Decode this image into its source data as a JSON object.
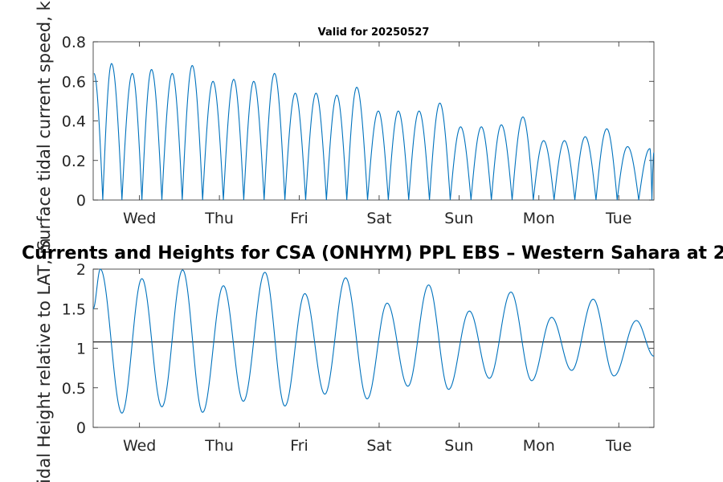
{
  "figure": {
    "subtitle": "Valid for 20250527",
    "title": "Currents and Heights for CSA (ONHYM) PPL EBS  – Western Sahara at 2"
  },
  "colors": {
    "series": "#0072BD",
    "mean_line": "#262626",
    "axes": "#262626"
  },
  "chart_data": [
    {
      "type": "line",
      "title": "Valid for 20250527",
      "ylabel": "Surface tidal current speed, kn",
      "xlabel": "",
      "x_unit": "days",
      "xlim": [
        -0.58,
        6.44
      ],
      "ylim": [
        0,
        0.8
      ],
      "yticks": [
        0,
        0.2,
        0.4,
        0.6,
        0.8
      ],
      "ytick_labels": [
        "0",
        "0.2",
        "0.4",
        "0.6",
        "0.8"
      ],
      "xticks": [
        0,
        1,
        2,
        3,
        4,
        5,
        6
      ],
      "xtick_labels": [
        "Wed",
        "Thu",
        "Fri",
        "Sat",
        "Sun",
        "Mon",
        "Tue"
      ],
      "grid": false,
      "series": [
        {
          "peaks": [
            [
              -0.57,
              0.64
            ],
            [
              -0.35,
              0.69
            ],
            [
              -0.09,
              0.64
            ],
            [
              0.15,
              0.66
            ],
            [
              0.41,
              0.64
            ],
            [
              0.66,
              0.68
            ],
            [
              0.92,
              0.6
            ],
            [
              1.18,
              0.61
            ],
            [
              1.43,
              0.6
            ],
            [
              1.69,
              0.64
            ],
            [
              1.95,
              0.54
            ],
            [
              2.21,
              0.54
            ],
            [
              2.47,
              0.53
            ],
            [
              2.72,
              0.57
            ],
            [
              2.99,
              0.45
            ],
            [
              3.24,
              0.45
            ],
            [
              3.5,
              0.45
            ],
            [
              3.76,
              0.49
            ],
            [
              4.02,
              0.37
            ],
            [
              4.28,
              0.37
            ],
            [
              4.53,
              0.38
            ],
            [
              4.8,
              0.42
            ],
            [
              5.06,
              0.3
            ],
            [
              5.32,
              0.3
            ],
            [
              5.58,
              0.32
            ],
            [
              5.85,
              0.36
            ],
            [
              6.11,
              0.27
            ],
            [
              6.39,
              0.26
            ],
            [
              6.44,
              0.24
            ]
          ]
        }
      ]
    },
    {
      "type": "line",
      "title": "Currents and Heights for CSA (ONHYM) PPL EBS  – Western Sahara at 2",
      "ylabel": "Tidal Height relative to LAT, m",
      "xlabel": "",
      "x_unit": "days",
      "xlim": [
        -0.58,
        6.44
      ],
      "ylim": [
        0,
        2
      ],
      "yticks": [
        0,
        0.5,
        1,
        1.5,
        2
      ],
      "ytick_labels": [
        "0",
        "0.5",
        "1",
        "1.5",
        "2"
      ],
      "xticks": [
        0,
        1,
        2,
        3,
        4,
        5,
        6
      ],
      "xtick_labels": [
        "Wed",
        "Thu",
        "Fri",
        "Sat",
        "Sun",
        "Mon",
        "Tue"
      ],
      "grid": false,
      "mean_line": 1.08,
      "series": [
        {
          "extremes": [
            [
              -0.58,
              1.5
            ],
            [
              -0.49,
              2.0
            ],
            [
              -0.22,
              0.18
            ],
            [
              0.03,
              1.88
            ],
            [
              0.28,
              0.26
            ],
            [
              0.54,
              1.99
            ],
            [
              0.79,
              0.19
            ],
            [
              1.05,
              1.79
            ],
            [
              1.3,
              0.33
            ],
            [
              1.57,
              1.96
            ],
            [
              1.82,
              0.27
            ],
            [
              2.07,
              1.69
            ],
            [
              2.32,
              0.42
            ],
            [
              2.58,
              1.89
            ],
            [
              2.85,
              0.36
            ],
            [
              3.1,
              1.57
            ],
            [
              3.36,
              0.52
            ],
            [
              3.62,
              1.8
            ],
            [
              3.87,
              0.48
            ],
            [
              4.13,
              1.47
            ],
            [
              4.38,
              0.62
            ],
            [
              4.65,
              1.71
            ],
            [
              4.91,
              0.59
            ],
            [
              5.16,
              1.39
            ],
            [
              5.41,
              0.72
            ],
            [
              5.68,
              1.62
            ],
            [
              5.94,
              0.65
            ],
            [
              6.22,
              1.35
            ],
            [
              6.44,
              0.9
            ]
          ]
        }
      ]
    }
  ]
}
